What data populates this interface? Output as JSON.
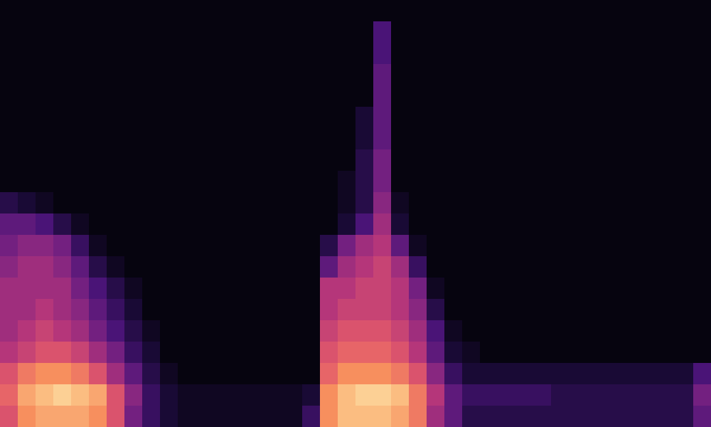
{
  "chart_data": {
    "type": "heatmap",
    "color": "magma",
    "tick_labels": false,
    "cells": [
      [
        0,
        0,
        0,
        0,
        0,
        0,
        0,
        0,
        0,
        0,
        0,
        0,
        0,
        0,
        0,
        0,
        0,
        0,
        0,
        0,
        0,
        0,
        0,
        0,
        0,
        0,
        0,
        0,
        0,
        0,
        0,
        0,
        0,
        0,
        0,
        0,
        0,
        0,
        0,
        0
      ],
      [
        0,
        0,
        0,
        0,
        0,
        0,
        0,
        0,
        0,
        0,
        0,
        0,
        0,
        0,
        0,
        0,
        0,
        0,
        0,
        0,
        0,
        0.25,
        0,
        0,
        0,
        0,
        0,
        0,
        0,
        0,
        0,
        0,
        0,
        0,
        0,
        0,
        0,
        0,
        0,
        0
      ],
      [
        0,
        0,
        0,
        0,
        0,
        0,
        0,
        0,
        0,
        0,
        0,
        0,
        0,
        0,
        0,
        0,
        0,
        0,
        0,
        0,
        0,
        0.25,
        0,
        0,
        0,
        0,
        0,
        0,
        0,
        0,
        0,
        0,
        0,
        0,
        0,
        0,
        0,
        0,
        0,
        0
      ],
      [
        0,
        0,
        0,
        0,
        0,
        0,
        0,
        0,
        0,
        0,
        0,
        0,
        0,
        0,
        0,
        0,
        0,
        0,
        0,
        0,
        0,
        0.3,
        0,
        0,
        0,
        0,
        0,
        0,
        0,
        0,
        0,
        0,
        0,
        0,
        0,
        0,
        0,
        0,
        0,
        0
      ],
      [
        0,
        0,
        0,
        0,
        0,
        0,
        0,
        0,
        0,
        0,
        0,
        0,
        0,
        0,
        0,
        0,
        0,
        0,
        0,
        0,
        0,
        0.3,
        0,
        0,
        0,
        0,
        0,
        0,
        0,
        0,
        0,
        0,
        0,
        0,
        0,
        0,
        0,
        0,
        0,
        0
      ],
      [
        0,
        0,
        0,
        0,
        0,
        0,
        0,
        0,
        0,
        0,
        0,
        0,
        0,
        0,
        0,
        0,
        0,
        0,
        0,
        0,
        0.1,
        0.3,
        0,
        0,
        0,
        0,
        0,
        0,
        0,
        0,
        0,
        0,
        0,
        0,
        0,
        0,
        0,
        0,
        0,
        0
      ],
      [
        0,
        0,
        0,
        0,
        0,
        0,
        0,
        0,
        0,
        0,
        0,
        0,
        0,
        0,
        0,
        0,
        0,
        0,
        0,
        0,
        0.1,
        0.3,
        0,
        0,
        0,
        0,
        0,
        0,
        0,
        0,
        0,
        0,
        0,
        0,
        0,
        0,
        0,
        0,
        0,
        0
      ],
      [
        0,
        0,
        0,
        0,
        0,
        0,
        0,
        0,
        0,
        0,
        0,
        0,
        0,
        0,
        0,
        0,
        0,
        0,
        0,
        0,
        0.15,
        0.35,
        0,
        0,
        0,
        0,
        0,
        0,
        0,
        0,
        0,
        0,
        0,
        0,
        0,
        0,
        0,
        0,
        0,
        0
      ],
      [
        0,
        0,
        0,
        0,
        0,
        0,
        0,
        0,
        0,
        0,
        0,
        0,
        0,
        0,
        0,
        0,
        0,
        0,
        0,
        0.05,
        0.15,
        0.35,
        0,
        0,
        0,
        0,
        0,
        0,
        0,
        0,
        0,
        0,
        0,
        0,
        0,
        0,
        0,
        0,
        0,
        0
      ],
      [
        0.15,
        0.1,
        0.05,
        0,
        0,
        0,
        0,
        0,
        0,
        0,
        0,
        0,
        0,
        0,
        0,
        0,
        0,
        0,
        0,
        0.05,
        0.15,
        0.4,
        0.05,
        0,
        0,
        0,
        0,
        0,
        0,
        0,
        0,
        0,
        0,
        0,
        0,
        0,
        0,
        0,
        0,
        0
      ],
      [
        0.3,
        0.3,
        0.25,
        0.15,
        0.05,
        0,
        0,
        0,
        0,
        0,
        0,
        0,
        0,
        0,
        0,
        0,
        0,
        0,
        0,
        0.1,
        0.25,
        0.45,
        0.1,
        0,
        0,
        0,
        0,
        0,
        0,
        0,
        0,
        0,
        0,
        0,
        0,
        0,
        0,
        0,
        0,
        0
      ],
      [
        0.35,
        0.4,
        0.4,
        0.35,
        0.2,
        0.05,
        0,
        0,
        0,
        0,
        0,
        0,
        0,
        0,
        0,
        0,
        0,
        0,
        0.15,
        0.35,
        0.45,
        0.5,
        0.3,
        0.05,
        0,
        0,
        0,
        0,
        0,
        0,
        0,
        0,
        0,
        0,
        0,
        0,
        0,
        0,
        0,
        0
      ],
      [
        0.4,
        0.45,
        0.45,
        0.4,
        0.3,
        0.15,
        0.05,
        0,
        0,
        0,
        0,
        0,
        0,
        0,
        0,
        0,
        0,
        0,
        0.3,
        0.45,
        0.5,
        0.55,
        0.45,
        0.2,
        0,
        0,
        0,
        0,
        0,
        0,
        0,
        0,
        0,
        0,
        0,
        0,
        0,
        0,
        0,
        0
      ],
      [
        0.45,
        0.45,
        0.45,
        0.45,
        0.35,
        0.25,
        0.15,
        0.05,
        0,
        0,
        0,
        0,
        0,
        0,
        0,
        0,
        0,
        0,
        0.5,
        0.5,
        0.55,
        0.55,
        0.5,
        0.35,
        0.05,
        0,
        0,
        0,
        0,
        0,
        0,
        0,
        0,
        0,
        0,
        0,
        0,
        0,
        0,
        0
      ],
      [
        0.45,
        0.45,
        0.5,
        0.45,
        0.4,
        0.3,
        0.2,
        0.1,
        0,
        0,
        0,
        0,
        0,
        0,
        0,
        0,
        0,
        0,
        0.5,
        0.55,
        0.55,
        0.55,
        0.5,
        0.4,
        0.15,
        0,
        0,
        0,
        0,
        0,
        0,
        0,
        0,
        0,
        0,
        0,
        0,
        0,
        0,
        0
      ],
      [
        0.45,
        0.5,
        0.55,
        0.5,
        0.45,
        0.35,
        0.25,
        0.15,
        0.05,
        0,
        0,
        0,
        0,
        0,
        0,
        0,
        0,
        0,
        0.55,
        0.6,
        0.6,
        0.6,
        0.55,
        0.45,
        0.25,
        0.05,
        0,
        0,
        0,
        0,
        0,
        0,
        0,
        0,
        0,
        0,
        0,
        0,
        0,
        0
      ],
      [
        0.5,
        0.55,
        0.6,
        0.6,
        0.55,
        0.45,
        0.35,
        0.2,
        0.1,
        0,
        0,
        0,
        0,
        0,
        0,
        0,
        0,
        0,
        0.6,
        0.65,
        0.65,
        0.65,
        0.6,
        0.5,
        0.3,
        0.1,
        0.05,
        0,
        0,
        0,
        0,
        0,
        0,
        0,
        0,
        0,
        0,
        0,
        0,
        0
      ],
      [
        0.6,
        0.7,
        0.75,
        0.75,
        0.7,
        0.6,
        0.45,
        0.3,
        0.15,
        0.05,
        0,
        0,
        0,
        0,
        0,
        0,
        0,
        0,
        0.65,
        0.75,
        0.75,
        0.75,
        0.7,
        0.6,
        0.4,
        0.2,
        0.1,
        0.1,
        0.1,
        0.1,
        0.1,
        0.1,
        0.1,
        0.1,
        0.1,
        0.1,
        0.1,
        0.1,
        0.1,
        0.25
      ],
      [
        0.65,
        0.8,
        0.85,
        0.9,
        0.85,
        0.8,
        0.6,
        0.4,
        0.2,
        0.1,
        0.05,
        0.05,
        0.05,
        0.05,
        0.05,
        0.05,
        0.05,
        0.1,
        0.75,
        0.85,
        0.9,
        0.9,
        0.85,
        0.7,
        0.5,
        0.3,
        0.2,
        0.2,
        0.2,
        0.2,
        0.2,
        0.15,
        0.15,
        0.15,
        0.15,
        0.15,
        0.15,
        0.15,
        0.15,
        0.35
      ],
      [
        0.6,
        0.75,
        0.8,
        0.8,
        0.8,
        0.75,
        0.6,
        0.35,
        0.2,
        0.1,
        0.05,
        0.05,
        0.05,
        0.05,
        0.05,
        0.05,
        0.05,
        0.2,
        0.75,
        0.85,
        0.85,
        0.85,
        0.8,
        0.7,
        0.45,
        0.3,
        0.15,
        0.15,
        0.15,
        0.15,
        0.15,
        0.15,
        0.15,
        0.15,
        0.15,
        0.15,
        0.15,
        0.15,
        0.15,
        0.3
      ]
    ]
  }
}
